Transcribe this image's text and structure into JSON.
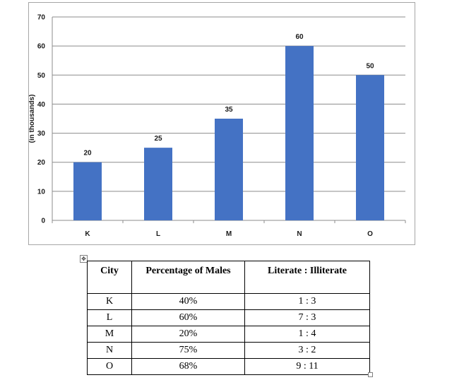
{
  "chart_data": {
    "type": "bar",
    "categories": [
      "K",
      "L",
      "M",
      "N",
      "O"
    ],
    "values": [
      20,
      25,
      35,
      60,
      50
    ],
    "ylabel": "(in thousands)",
    "xlabel": "",
    "ylim": [
      0,
      70
    ],
    "yticks": [
      0,
      10,
      20,
      30,
      40,
      50,
      60,
      70
    ],
    "grid": true,
    "bar_color": "#4472C4",
    "data_labels": true
  },
  "table": {
    "headers": [
      "City",
      "Percentage of Males",
      "Literate : Illiterate"
    ],
    "rows": [
      [
        "K",
        "40%",
        "1 : 3"
      ],
      [
        "L",
        "60%",
        "7 : 3"
      ],
      [
        "M",
        "20%",
        "1 : 4"
      ],
      [
        "N",
        "75%",
        "3 : 2"
      ],
      [
        "O",
        "68%",
        "9 : 11"
      ]
    ]
  },
  "handles": {
    "move_icon": "move-handle-icon",
    "move_glyph": "✥"
  }
}
